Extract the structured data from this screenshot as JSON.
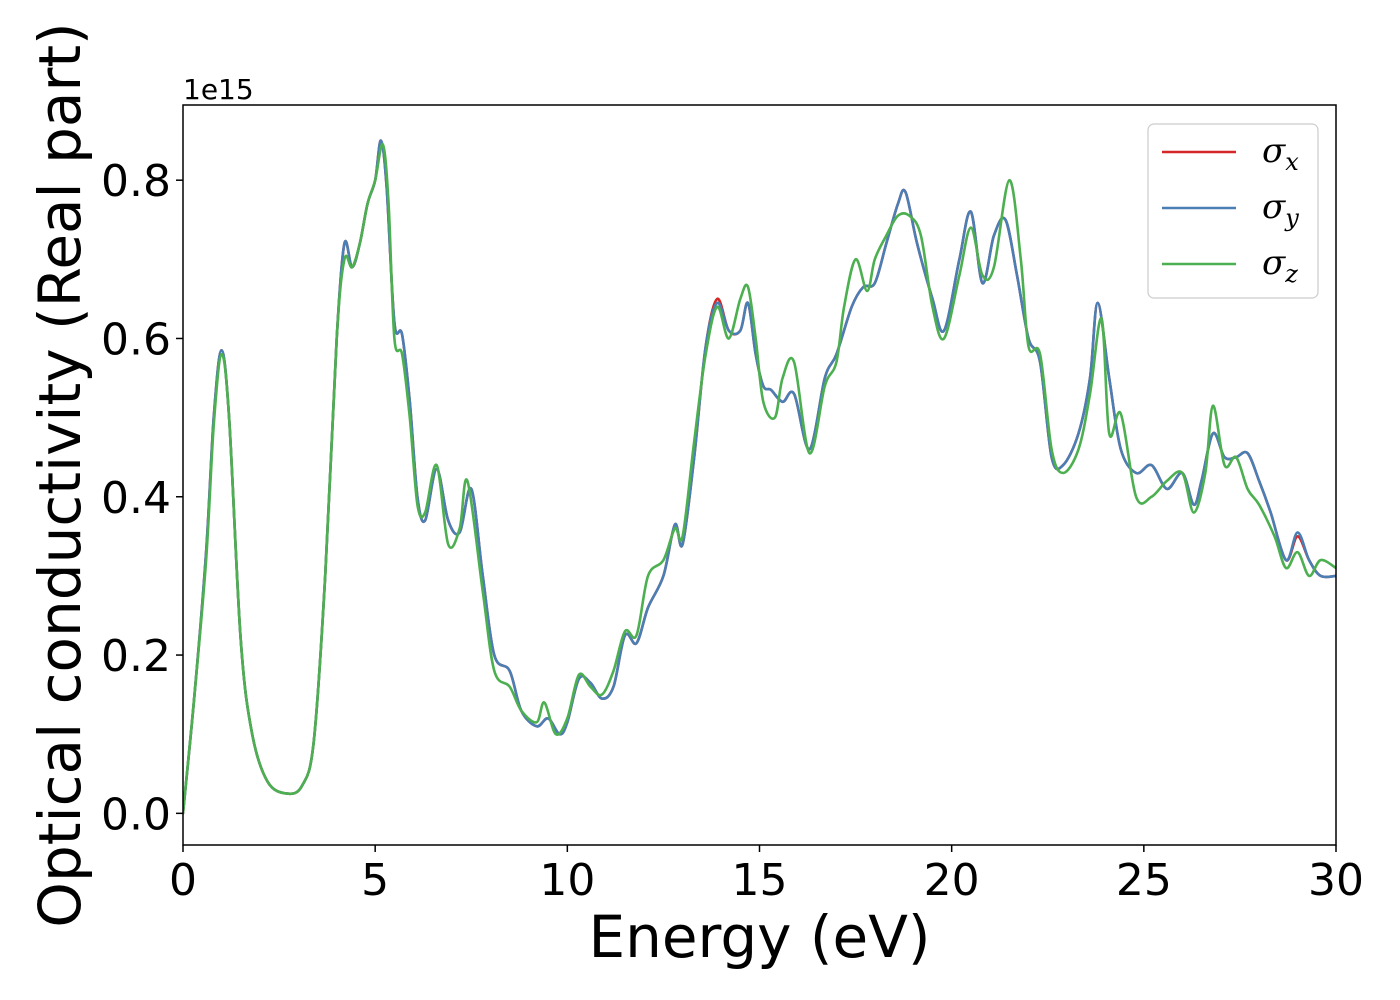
{
  "chart_data": {
    "type": "line",
    "xlabel": "Energy (eV)",
    "ylabel": "Optical conductivity (Real part)",
    "y_offset_label": "1e15",
    "xlim": [
      0,
      30
    ],
    "ylim": [
      -0.04,
      0.895
    ],
    "grid": false,
    "legend_position": "top-right",
    "x_ticks": [
      0,
      5,
      10,
      15,
      20,
      25,
      30
    ],
    "x_tick_labels": [
      "0",
      "5",
      "10",
      "15",
      "20",
      "25",
      "30"
    ],
    "y_ticks": [
      0.0,
      0.2,
      0.4,
      0.6,
      0.8
    ],
    "y_tick_labels": [
      "0.0",
      "0.2",
      "0.4",
      "0.6",
      "0.8"
    ],
    "colors": {
      "sigma_x": "#d62728",
      "sigma_y": "#4a7fb5",
      "sigma_z": "#4caf50"
    },
    "legend": [
      {
        "symbol": "σ",
        "sub": "x",
        "color": "#d62728"
      },
      {
        "symbol": "σ",
        "sub": "y",
        "color": "#4a7fb5"
      },
      {
        "symbol": "σ",
        "sub": "z",
        "color": "#4caf50"
      }
    ],
    "series": [
      {
        "key": "sigma_x",
        "color": "#d62728",
        "points": [
          [
            0,
            0
          ],
          [
            0.3,
            0.15
          ],
          [
            0.6,
            0.33
          ],
          [
            0.8,
            0.5
          ],
          [
            1.0,
            0.585
          ],
          [
            1.2,
            0.5
          ],
          [
            1.5,
            0.22
          ],
          [
            1.8,
            0.1
          ],
          [
            2.2,
            0.04
          ],
          [
            2.7,
            0.025
          ],
          [
            3.1,
            0.035
          ],
          [
            3.4,
            0.09
          ],
          [
            3.7,
            0.3
          ],
          [
            4.0,
            0.6
          ],
          [
            4.2,
            0.72
          ],
          [
            4.4,
            0.69
          ],
          [
            4.6,
            0.72
          ],
          [
            4.8,
            0.77
          ],
          [
            5.0,
            0.8
          ],
          [
            5.15,
            0.85
          ],
          [
            5.3,
            0.79
          ],
          [
            5.5,
            0.62
          ],
          [
            5.7,
            0.605
          ],
          [
            5.9,
            0.52
          ],
          [
            6.1,
            0.4
          ],
          [
            6.3,
            0.37
          ],
          [
            6.6,
            0.435
          ],
          [
            6.9,
            0.37
          ],
          [
            7.2,
            0.355
          ],
          [
            7.5,
            0.41
          ],
          [
            7.8,
            0.3
          ],
          [
            8.1,
            0.2
          ],
          [
            8.5,
            0.18
          ],
          [
            8.8,
            0.13
          ],
          [
            9.2,
            0.11
          ],
          [
            9.5,
            0.12
          ],
          [
            9.8,
            0.1
          ],
          [
            10.0,
            0.115
          ],
          [
            10.3,
            0.17
          ],
          [
            10.6,
            0.165
          ],
          [
            10.9,
            0.145
          ],
          [
            11.2,
            0.16
          ],
          [
            11.5,
            0.225
          ],
          [
            11.8,
            0.215
          ],
          [
            12.1,
            0.26
          ],
          [
            12.5,
            0.3
          ],
          [
            12.8,
            0.365
          ],
          [
            13.0,
            0.34
          ],
          [
            13.3,
            0.45
          ],
          [
            13.6,
            0.59
          ],
          [
            13.9,
            0.65
          ],
          [
            14.2,
            0.61
          ],
          [
            14.5,
            0.61
          ],
          [
            14.7,
            0.645
          ],
          [
            14.9,
            0.58
          ],
          [
            15.1,
            0.54
          ],
          [
            15.3,
            0.535
          ],
          [
            15.6,
            0.52
          ],
          [
            15.9,
            0.53
          ],
          [
            16.3,
            0.46
          ],
          [
            16.7,
            0.55
          ],
          [
            17.0,
            0.58
          ],
          [
            17.4,
            0.64
          ],
          [
            17.7,
            0.665
          ],
          [
            18.0,
            0.67
          ],
          [
            18.3,
            0.72
          ],
          [
            18.6,
            0.77
          ],
          [
            18.8,
            0.785
          ],
          [
            19.1,
            0.72
          ],
          [
            19.5,
            0.65
          ],
          [
            19.8,
            0.61
          ],
          [
            20.2,
            0.7
          ],
          [
            20.5,
            0.76
          ],
          [
            20.8,
            0.67
          ],
          [
            21.1,
            0.73
          ],
          [
            21.4,
            0.75
          ],
          [
            21.7,
            0.68
          ],
          [
            22.0,
            0.6
          ],
          [
            22.3,
            0.57
          ],
          [
            22.6,
            0.45
          ],
          [
            22.9,
            0.44
          ],
          [
            23.3,
            0.48
          ],
          [
            23.6,
            0.55
          ],
          [
            23.8,
            0.645
          ],
          [
            24.1,
            0.55
          ],
          [
            24.4,
            0.46
          ],
          [
            24.8,
            0.43
          ],
          [
            25.2,
            0.44
          ],
          [
            25.6,
            0.41
          ],
          [
            26.0,
            0.43
          ],
          [
            26.3,
            0.39
          ],
          [
            26.5,
            0.42
          ],
          [
            26.8,
            0.48
          ],
          [
            27.1,
            0.45
          ],
          [
            27.4,
            0.45
          ],
          [
            27.7,
            0.455
          ],
          [
            28.0,
            0.42
          ],
          [
            28.3,
            0.38
          ],
          [
            28.7,
            0.32
          ],
          [
            29.0,
            0.35
          ],
          [
            29.3,
            0.32
          ],
          [
            29.6,
            0.3
          ],
          [
            30.0,
            0.3
          ]
        ]
      },
      {
        "key": "sigma_y",
        "color": "#4a7fb5",
        "points": [
          [
            0,
            0
          ],
          [
            0.3,
            0.15
          ],
          [
            0.6,
            0.33
          ],
          [
            0.8,
            0.5
          ],
          [
            1.0,
            0.585
          ],
          [
            1.2,
            0.5
          ],
          [
            1.5,
            0.22
          ],
          [
            1.8,
            0.1
          ],
          [
            2.2,
            0.04
          ],
          [
            2.7,
            0.025
          ],
          [
            3.1,
            0.035
          ],
          [
            3.4,
            0.09
          ],
          [
            3.7,
            0.3
          ],
          [
            4.0,
            0.6
          ],
          [
            4.2,
            0.72
          ],
          [
            4.4,
            0.69
          ],
          [
            4.6,
            0.72
          ],
          [
            4.8,
            0.77
          ],
          [
            5.0,
            0.8
          ],
          [
            5.15,
            0.85
          ],
          [
            5.3,
            0.79
          ],
          [
            5.5,
            0.62
          ],
          [
            5.7,
            0.605
          ],
          [
            5.9,
            0.52
          ],
          [
            6.1,
            0.4
          ],
          [
            6.3,
            0.37
          ],
          [
            6.6,
            0.435
          ],
          [
            6.9,
            0.37
          ],
          [
            7.2,
            0.355
          ],
          [
            7.5,
            0.41
          ],
          [
            7.8,
            0.3
          ],
          [
            8.1,
            0.2
          ],
          [
            8.5,
            0.18
          ],
          [
            8.8,
            0.13
          ],
          [
            9.2,
            0.11
          ],
          [
            9.5,
            0.12
          ],
          [
            9.8,
            0.1
          ],
          [
            10.0,
            0.115
          ],
          [
            10.3,
            0.17
          ],
          [
            10.6,
            0.165
          ],
          [
            10.9,
            0.145
          ],
          [
            11.2,
            0.16
          ],
          [
            11.5,
            0.225
          ],
          [
            11.8,
            0.215
          ],
          [
            12.1,
            0.26
          ],
          [
            12.5,
            0.3
          ],
          [
            12.8,
            0.365
          ],
          [
            13.0,
            0.34
          ],
          [
            13.3,
            0.45
          ],
          [
            13.6,
            0.59
          ],
          [
            13.9,
            0.645
          ],
          [
            14.2,
            0.61
          ],
          [
            14.5,
            0.61
          ],
          [
            14.7,
            0.645
          ],
          [
            14.9,
            0.58
          ],
          [
            15.1,
            0.54
          ],
          [
            15.3,
            0.535
          ],
          [
            15.6,
            0.52
          ],
          [
            15.9,
            0.53
          ],
          [
            16.3,
            0.46
          ],
          [
            16.7,
            0.55
          ],
          [
            17.0,
            0.58
          ],
          [
            17.4,
            0.64
          ],
          [
            17.7,
            0.665
          ],
          [
            18.0,
            0.67
          ],
          [
            18.3,
            0.72
          ],
          [
            18.6,
            0.77
          ],
          [
            18.8,
            0.785
          ],
          [
            19.1,
            0.72
          ],
          [
            19.5,
            0.65
          ],
          [
            19.8,
            0.61
          ],
          [
            20.2,
            0.7
          ],
          [
            20.5,
            0.76
          ],
          [
            20.8,
            0.67
          ],
          [
            21.1,
            0.73
          ],
          [
            21.4,
            0.75
          ],
          [
            21.7,
            0.68
          ],
          [
            22.0,
            0.6
          ],
          [
            22.3,
            0.57
          ],
          [
            22.6,
            0.45
          ],
          [
            22.9,
            0.44
          ],
          [
            23.3,
            0.48
          ],
          [
            23.6,
            0.55
          ],
          [
            23.8,
            0.645
          ],
          [
            24.1,
            0.55
          ],
          [
            24.4,
            0.46
          ],
          [
            24.8,
            0.43
          ],
          [
            25.2,
            0.44
          ],
          [
            25.6,
            0.41
          ],
          [
            26.0,
            0.43
          ],
          [
            26.3,
            0.39
          ],
          [
            26.5,
            0.42
          ],
          [
            26.8,
            0.48
          ],
          [
            27.1,
            0.45
          ],
          [
            27.4,
            0.45
          ],
          [
            27.7,
            0.455
          ],
          [
            28.0,
            0.42
          ],
          [
            28.3,
            0.38
          ],
          [
            28.7,
            0.32
          ],
          [
            29.0,
            0.355
          ],
          [
            29.3,
            0.32
          ],
          [
            29.6,
            0.3
          ],
          [
            30.0,
            0.3
          ]
        ]
      },
      {
        "key": "sigma_z",
        "color": "#4caf50",
        "points": [
          [
            0,
            0
          ],
          [
            0.3,
            0.15
          ],
          [
            0.6,
            0.32
          ],
          [
            0.8,
            0.49
          ],
          [
            1.0,
            0.58
          ],
          [
            1.2,
            0.5
          ],
          [
            1.5,
            0.22
          ],
          [
            1.8,
            0.1
          ],
          [
            2.2,
            0.04
          ],
          [
            2.7,
            0.025
          ],
          [
            3.1,
            0.035
          ],
          [
            3.4,
            0.09
          ],
          [
            3.7,
            0.3
          ],
          [
            4.0,
            0.6
          ],
          [
            4.2,
            0.7
          ],
          [
            4.4,
            0.69
          ],
          [
            4.6,
            0.72
          ],
          [
            4.8,
            0.77
          ],
          [
            5.0,
            0.8
          ],
          [
            5.2,
            0.845
          ],
          [
            5.35,
            0.77
          ],
          [
            5.5,
            0.6
          ],
          [
            5.7,
            0.58
          ],
          [
            5.9,
            0.5
          ],
          [
            6.1,
            0.39
          ],
          [
            6.3,
            0.38
          ],
          [
            6.6,
            0.44
          ],
          [
            6.9,
            0.34
          ],
          [
            7.2,
            0.36
          ],
          [
            7.4,
            0.42
          ],
          [
            7.8,
            0.28
          ],
          [
            8.1,
            0.18
          ],
          [
            8.5,
            0.16
          ],
          [
            8.8,
            0.13
          ],
          [
            9.2,
            0.115
          ],
          [
            9.4,
            0.14
          ],
          [
            9.7,
            0.1
          ],
          [
            10.0,
            0.12
          ],
          [
            10.3,
            0.175
          ],
          [
            10.6,
            0.16
          ],
          [
            10.9,
            0.15
          ],
          [
            11.2,
            0.18
          ],
          [
            11.5,
            0.23
          ],
          [
            11.8,
            0.225
          ],
          [
            12.1,
            0.3
          ],
          [
            12.5,
            0.32
          ],
          [
            12.8,
            0.36
          ],
          [
            13.0,
            0.35
          ],
          [
            13.3,
            0.47
          ],
          [
            13.6,
            0.58
          ],
          [
            13.9,
            0.64
          ],
          [
            14.2,
            0.6
          ],
          [
            14.5,
            0.65
          ],
          [
            14.7,
            0.665
          ],
          [
            14.9,
            0.6
          ],
          [
            15.1,
            0.52
          ],
          [
            15.4,
            0.5
          ],
          [
            15.6,
            0.55
          ],
          [
            15.9,
            0.57
          ],
          [
            16.3,
            0.455
          ],
          [
            16.7,
            0.54
          ],
          [
            17.0,
            0.57
          ],
          [
            17.2,
            0.64
          ],
          [
            17.5,
            0.7
          ],
          [
            17.8,
            0.66
          ],
          [
            18.0,
            0.7
          ],
          [
            18.3,
            0.73
          ],
          [
            18.6,
            0.755
          ],
          [
            18.9,
            0.755
          ],
          [
            19.2,
            0.73
          ],
          [
            19.5,
            0.64
          ],
          [
            19.8,
            0.6
          ],
          [
            20.2,
            0.68
          ],
          [
            20.5,
            0.74
          ],
          [
            20.8,
            0.68
          ],
          [
            21.1,
            0.69
          ],
          [
            21.5,
            0.8
          ],
          [
            21.8,
            0.7
          ],
          [
            22.0,
            0.59
          ],
          [
            22.3,
            0.58
          ],
          [
            22.6,
            0.46
          ],
          [
            22.9,
            0.43
          ],
          [
            23.3,
            0.46
          ],
          [
            23.6,
            0.53
          ],
          [
            23.9,
            0.625
          ],
          [
            24.1,
            0.48
          ],
          [
            24.4,
            0.505
          ],
          [
            24.8,
            0.4
          ],
          [
            25.2,
            0.4
          ],
          [
            25.6,
            0.42
          ],
          [
            26.0,
            0.43
          ],
          [
            26.3,
            0.38
          ],
          [
            26.6,
            0.43
          ],
          [
            26.8,
            0.515
          ],
          [
            27.1,
            0.44
          ],
          [
            27.4,
            0.45
          ],
          [
            27.7,
            0.41
          ],
          [
            28.0,
            0.39
          ],
          [
            28.4,
            0.35
          ],
          [
            28.7,
            0.31
          ],
          [
            29.0,
            0.33
          ],
          [
            29.3,
            0.3
          ],
          [
            29.6,
            0.32
          ],
          [
            30.0,
            0.31
          ]
        ]
      }
    ]
  }
}
